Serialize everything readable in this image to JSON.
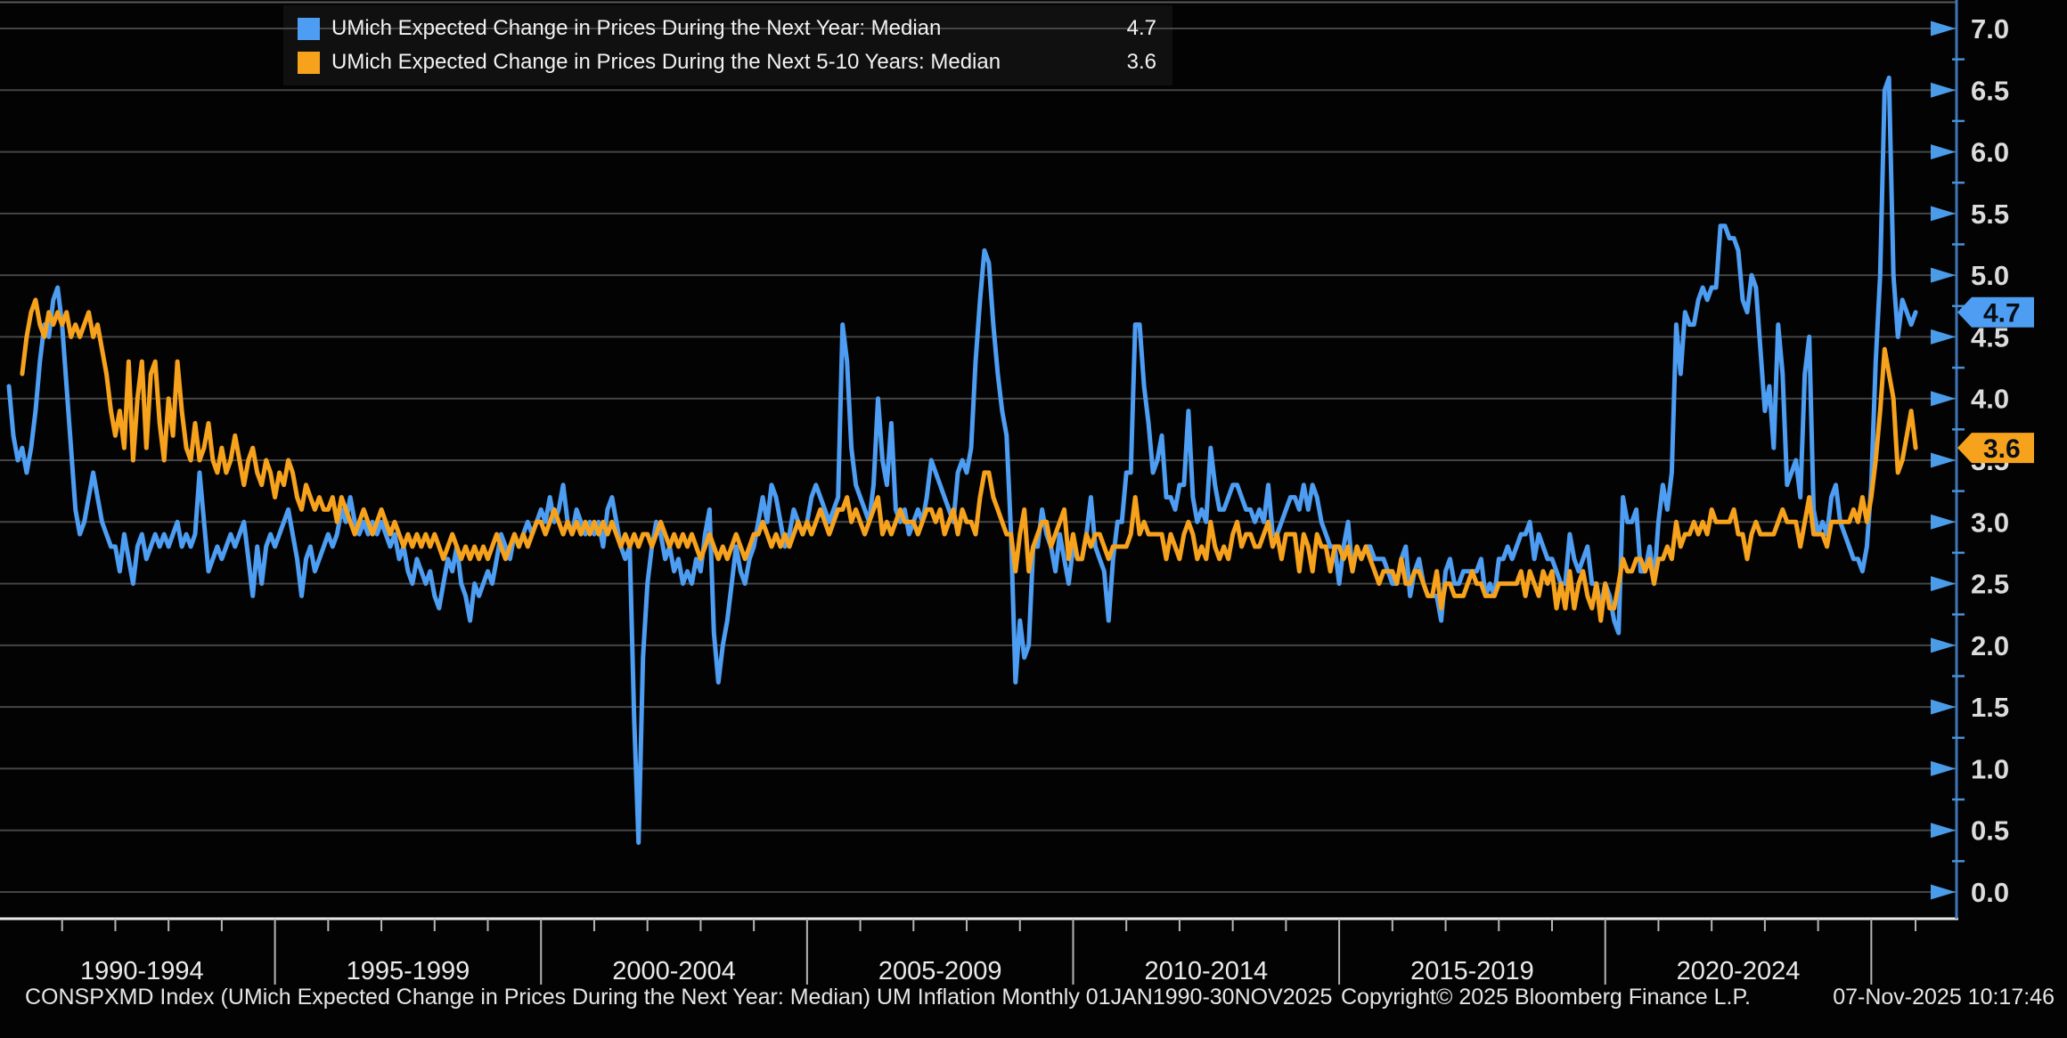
{
  "legend": {
    "row1_value": "4.7",
    "row2_value": "3.6"
  },
  "footer": {
    "left": "CONSPXMD Index (UMich Expected Change in Prices During the Next Year: Median) UM Inflation Monthly 01JAN1990-30NOV2025",
    "center": "Copyright© 2025 Bloomberg Finance L.P.",
    "right": "07-Nov-2025 10:17:46"
  },
  "chart_data": {
    "type": "line",
    "title": "",
    "x_axis": {
      "group_labels": [
        "1990-1994",
        "1995-1999",
        "2000-2004",
        "2005-2009",
        "2010-2014",
        "2015-2019",
        "2020-2024"
      ],
      "start": "Jan 1990",
      "end": "Nov 2025",
      "frequency": "monthly"
    },
    "y_axis": {
      "ticks": [
        0.0,
        0.5,
        1.0,
        1.5,
        2.0,
        2.5,
        3.0,
        3.5,
        4.0,
        4.5,
        5.0,
        5.5,
        6.0,
        6.5,
        7.0
      ],
      "ylim": [
        0.0,
        7.0
      ],
      "side": "right",
      "axis_color": "#3f76b8",
      "tick_arrow_color": "#4a9be8",
      "grid": true,
      "grid_color": "#454545"
    },
    "legend_position": "top-left",
    "series": [
      {
        "name": "UMich Expected Change in Prices During the Next Year: Median",
        "value_display": "4.7",
        "color": "#4D9DF2",
        "badge_text_color": "#07121d",
        "values": [
          4.1,
          3.7,
          3.5,
          3.6,
          3.4,
          3.6,
          3.9,
          4.3,
          4.6,
          4.5,
          4.8,
          4.9,
          4.6,
          4.1,
          3.6,
          3.1,
          2.9,
          3.0,
          3.2,
          3.4,
          3.2,
          3.0,
          2.9,
          2.8,
          2.8,
          2.6,
          2.9,
          2.7,
          2.5,
          2.8,
          2.9,
          2.7,
          2.8,
          2.9,
          2.8,
          2.9,
          2.8,
          2.9,
          3.0,
          2.8,
          2.9,
          2.8,
          2.9,
          3.4,
          3.0,
          2.6,
          2.7,
          2.8,
          2.7,
          2.8,
          2.9,
          2.8,
          2.9,
          3.0,
          2.7,
          2.4,
          2.8,
          2.5,
          2.8,
          2.9,
          2.8,
          2.9,
          3.0,
          3.1,
          2.9,
          2.7,
          2.4,
          2.7,
          2.8,
          2.6,
          2.7,
          2.8,
          2.9,
          2.8,
          2.9,
          3.1,
          3.0,
          3.2,
          3.0,
          2.9,
          3.0,
          2.9,
          3.0,
          2.9,
          3.0,
          2.9,
          2.8,
          2.9,
          2.7,
          2.8,
          2.6,
          2.5,
          2.7,
          2.6,
          2.5,
          2.6,
          2.4,
          2.3,
          2.5,
          2.7,
          2.6,
          2.8,
          2.5,
          2.4,
          2.2,
          2.5,
          2.4,
          2.5,
          2.6,
          2.5,
          2.7,
          2.9,
          2.8,
          2.7,
          2.9,
          2.8,
          2.9,
          3.0,
          2.9,
          3.0,
          3.1,
          3.0,
          3.2,
          3.0,
          3.1,
          3.3,
          3.0,
          2.9,
          3.1,
          3.0,
          2.9,
          3.0,
          2.9,
          3.0,
          2.8,
          3.1,
          3.2,
          3.0,
          2.8,
          2.7,
          2.8,
          1.4,
          0.4,
          1.9,
          2.5,
          2.8,
          3.0,
          2.9,
          2.7,
          2.8,
          2.6,
          2.7,
          2.5,
          2.6,
          2.5,
          2.7,
          2.6,
          2.9,
          3.1,
          2.1,
          1.7,
          2.0,
          2.2,
          2.5,
          2.8,
          2.6,
          2.5,
          2.7,
          2.8,
          3.0,
          3.2,
          3.0,
          3.3,
          3.2,
          3.0,
          2.8,
          2.9,
          3.1,
          3.0,
          2.9,
          3.0,
          3.2,
          3.3,
          3.2,
          3.1,
          3.0,
          3.1,
          3.2,
          4.6,
          4.3,
          3.6,
          3.3,
          3.2,
          3.1,
          3.0,
          3.3,
          4.0,
          3.5,
          3.3,
          3.8,
          3.1,
          3.0,
          3.1,
          2.9,
          3.0,
          3.1,
          3.0,
          3.2,
          3.5,
          3.4,
          3.3,
          3.2,
          3.1,
          3.0,
          3.4,
          3.5,
          3.4,
          3.6,
          4.3,
          4.8,
          5.2,
          5.1,
          4.6,
          4.2,
          3.9,
          3.7,
          2.9,
          1.7,
          2.2,
          1.9,
          2.0,
          2.8,
          2.8,
          3.1,
          2.9,
          2.8,
          2.6,
          2.9,
          2.7,
          2.5,
          2.8,
          2.7,
          2.7,
          2.9,
          3.2,
          2.8,
          2.7,
          2.6,
          2.2,
          2.7,
          3.0,
          3.0,
          3.4,
          3.4,
          4.6,
          4.6,
          4.1,
          3.8,
          3.4,
          3.5,
          3.7,
          3.2,
          3.2,
          3.1,
          3.3,
          3.3,
          3.9,
          3.2,
          3.0,
          3.1,
          3.0,
          3.6,
          3.3,
          3.1,
          3.1,
          3.2,
          3.3,
          3.3,
          3.2,
          3.1,
          3.1,
          3.0,
          3.1,
          3.0,
          3.3,
          2.9,
          2.9,
          3.0,
          3.1,
          3.2,
          3.2,
          3.1,
          3.3,
          3.1,
          3.3,
          3.2,
          3.0,
          2.9,
          2.8,
          2.8,
          2.5,
          2.8,
          3.0,
          2.6,
          2.8,
          2.7,
          2.8,
          2.8,
          2.7,
          2.7,
          2.7,
          2.6,
          2.5,
          2.5,
          2.7,
          2.8,
          2.4,
          2.6,
          2.7,
          2.5,
          2.4,
          2.4,
          2.4,
          2.2,
          2.6,
          2.7,
          2.5,
          2.5,
          2.6,
          2.6,
          2.6,
          2.6,
          2.7,
          2.4,
          2.5,
          2.4,
          2.7,
          2.7,
          2.8,
          2.7,
          2.8,
          2.9,
          2.9,
          3.0,
          2.7,
          2.9,
          2.8,
          2.7,
          2.7,
          2.6,
          2.5,
          2.5,
          2.9,
          2.7,
          2.6,
          2.7,
          2.8,
          2.5,
          2.5,
          2.3,
          2.5,
          2.4,
          2.2,
          2.1,
          3.2,
          3.0,
          3.0,
          3.1,
          2.6,
          2.6,
          2.8,
          2.5,
          3.0,
          3.3,
          3.1,
          3.4,
          4.6,
          4.2,
          4.7,
          4.6,
          4.6,
          4.8,
          4.9,
          4.8,
          4.9,
          4.9,
          5.4,
          5.4,
          5.3,
          5.3,
          5.2,
          4.8,
          4.7,
          5.0,
          4.9,
          4.4,
          3.9,
          4.1,
          3.6,
          4.6,
          4.2,
          3.3,
          3.4,
          3.5,
          3.2,
          4.2,
          4.5,
          3.1,
          2.9,
          3.0,
          2.9,
          3.2,
          3.3,
          3.0,
          2.9,
          2.8,
          2.7,
          2.7,
          2.6,
          2.8,
          3.3,
          4.3,
          5.0,
          6.5,
          6.6,
          5.0,
          4.5,
          4.8,
          4.7,
          4.6,
          4.7
        ]
      },
      {
        "name": "UMich Expected Change in Prices During the Next 5-10 Years: Median",
        "value_display": "3.6",
        "color": "#F6A21D",
        "badge_text_color": "#161002",
        "values": [
          null,
          null,
          null,
          4.2,
          4.5,
          4.7,
          4.8,
          4.6,
          4.5,
          4.7,
          4.6,
          4.7,
          4.6,
          4.7,
          4.5,
          4.6,
          4.5,
          4.6,
          4.7,
          4.5,
          4.6,
          4.4,
          4.2,
          3.9,
          3.7,
          3.9,
          3.6,
          4.3,
          3.5,
          4.0,
          4.3,
          3.6,
          4.2,
          4.3,
          3.8,
          3.5,
          4.0,
          3.7,
          4.3,
          3.9,
          3.6,
          3.5,
          3.8,
          3.5,
          3.6,
          3.8,
          3.5,
          3.4,
          3.6,
          3.4,
          3.5,
          3.7,
          3.5,
          3.3,
          3.5,
          3.6,
          3.4,
          3.3,
          3.5,
          3.4,
          3.2,
          3.4,
          3.3,
          3.5,
          3.4,
          3.2,
          3.1,
          3.3,
          3.2,
          3.1,
          3.2,
          3.1,
          3.1,
          3.2,
          3.0,
          3.2,
          3.1,
          3.0,
          2.9,
          3.0,
          3.1,
          3.0,
          2.9,
          3.0,
          3.1,
          3.0,
          2.9,
          3.0,
          2.9,
          2.8,
          2.9,
          2.8,
          2.9,
          2.8,
          2.9,
          2.8,
          2.9,
          2.8,
          2.7,
          2.8,
          2.9,
          2.8,
          2.7,
          2.8,
          2.7,
          2.8,
          2.7,
          2.8,
          2.7,
          2.8,
          2.9,
          2.8,
          2.7,
          2.8,
          2.9,
          2.8,
          2.9,
          2.8,
          2.9,
          3.0,
          3.0,
          2.9,
          3.0,
          3.1,
          3.0,
          2.9,
          3.0,
          2.9,
          3.0,
          2.9,
          3.0,
          2.9,
          3.0,
          2.9,
          3.0,
          2.9,
          3.0,
          2.9,
          2.8,
          2.9,
          2.8,
          2.9,
          2.8,
          2.9,
          2.9,
          2.8,
          2.9,
          3.0,
          2.9,
          2.8,
          2.9,
          2.8,
          2.9,
          2.8,
          2.9,
          2.8,
          2.7,
          2.8,
          2.9,
          2.8,
          2.7,
          2.8,
          2.7,
          2.8,
          2.9,
          2.8,
          2.7,
          2.8,
          2.9,
          2.9,
          3.0,
          2.9,
          2.8,
          2.9,
          2.8,
          2.9,
          2.8,
          2.9,
          3.0,
          2.9,
          3.0,
          2.9,
          3.0,
          3.1,
          3.0,
          2.9,
          3.0,
          3.1,
          3.1,
          3.2,
          3.0,
          3.1,
          3.0,
          2.9,
          3.0,
          3.1,
          3.2,
          2.9,
          3.0,
          2.9,
          3.0,
          3.1,
          3.0,
          3.0,
          3.0,
          2.9,
          3.0,
          3.1,
          3.1,
          3.0,
          3.1,
          2.9,
          3.0,
          3.1,
          2.9,
          3.1,
          3.0,
          3.0,
          2.9,
          3.2,
          3.4,
          3.4,
          3.2,
          3.1,
          3.0,
          2.9,
          2.9,
          2.6,
          2.9,
          3.1,
          2.6,
          2.8,
          2.9,
          3.0,
          3.0,
          2.8,
          2.9,
          3.0,
          3.1,
          2.7,
          2.9,
          2.7,
          2.7,
          2.9,
          2.8,
          2.9,
          2.9,
          2.8,
          2.7,
          2.8,
          2.8,
          2.8,
          2.8,
          2.9,
          3.2,
          2.9,
          3.0,
          2.9,
          2.9,
          2.9,
          2.9,
          2.7,
          2.9,
          2.8,
          2.7,
          2.9,
          3.0,
          2.9,
          2.7,
          2.8,
          2.7,
          3.0,
          2.8,
          2.7,
          2.8,
          2.7,
          2.9,
          3.0,
          2.8,
          2.9,
          2.9,
          2.8,
          2.8,
          2.9,
          3.0,
          2.8,
          2.9,
          2.7,
          2.9,
          2.9,
          2.9,
          2.6,
          2.9,
          2.8,
          2.6,
          2.9,
          2.8,
          2.8,
          2.6,
          2.8,
          2.8,
          2.7,
          2.8,
          2.6,
          2.8,
          2.7,
          2.8,
          2.7,
          2.6,
          2.5,
          2.6,
          2.6,
          2.6,
          2.5,
          2.7,
          2.5,
          2.5,
          2.6,
          2.6,
          2.5,
          2.4,
          2.4,
          2.6,
          2.3,
          2.5,
          2.5,
          2.4,
          2.4,
          2.4,
          2.5,
          2.6,
          2.5,
          2.5,
          2.4,
          2.4,
          2.4,
          2.5,
          2.5,
          2.5,
          2.5,
          2.5,
          2.6,
          2.4,
          2.6,
          2.5,
          2.4,
          2.6,
          2.5,
          2.6,
          2.3,
          2.5,
          2.3,
          2.6,
          2.3,
          2.5,
          2.6,
          2.4,
          2.3,
          2.5,
          2.2,
          2.5,
          2.3,
          2.3,
          2.5,
          2.7,
          2.6,
          2.6,
          2.7,
          2.7,
          2.6,
          2.7,
          2.5,
          2.7,
          2.7,
          2.8,
          2.7,
          3.0,
          2.8,
          2.9,
          2.9,
          3.0,
          2.9,
          3.0,
          2.9,
          3.1,
          3.0,
          3.0,
          3.0,
          3.0,
          3.1,
          2.9,
          2.9,
          2.7,
          2.9,
          3.0,
          2.9,
          2.9,
          2.9,
          2.9,
          3.0,
          3.1,
          3.0,
          3.0,
          3.0,
          2.8,
          3.0,
          3.2,
          2.9,
          2.9,
          2.9,
          2.8,
          3.0,
          3.0,
          3.0,
          3.0,
          3.0,
          3.1,
          3.0,
          3.2,
          3.0,
          3.2,
          3.5,
          3.9,
          4.4,
          4.2,
          4.0,
          3.4,
          3.5,
          3.7,
          3.9,
          3.6
        ]
      }
    ]
  }
}
